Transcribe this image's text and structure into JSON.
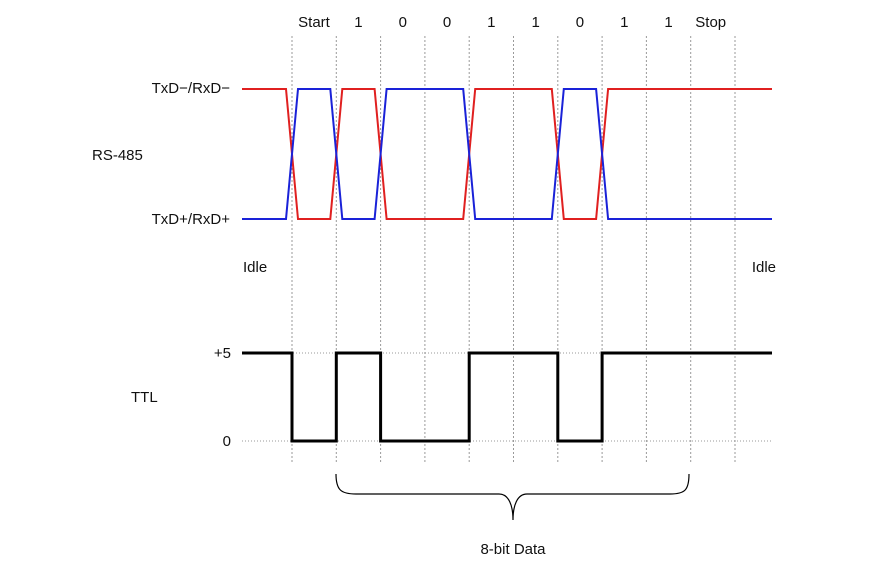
{
  "bit_labels": [
    "Start",
    "1",
    "0",
    "0",
    "1",
    "1",
    "0",
    "1",
    "1",
    "Stop"
  ],
  "labels": {
    "txd_minus": "TxD−/RxD−",
    "rs485": "RS-485",
    "txd_plus": "TxD+/RxD+",
    "idle_left": "Idle",
    "idle_right": "Idle",
    "ttl_high": "+5",
    "ttl_name": "TTL",
    "ttl_low": "0",
    "data_brace": "8-bit Data"
  },
  "ttl_levels": {
    "idle": 1,
    "bits": [
      0,
      1,
      0,
      0,
      1,
      1,
      0,
      1,
      1,
      1
    ]
  },
  "colors": {
    "line_minus": "#e02020",
    "line_plus": "#1a22d8",
    "ttl": "#000000"
  }
}
